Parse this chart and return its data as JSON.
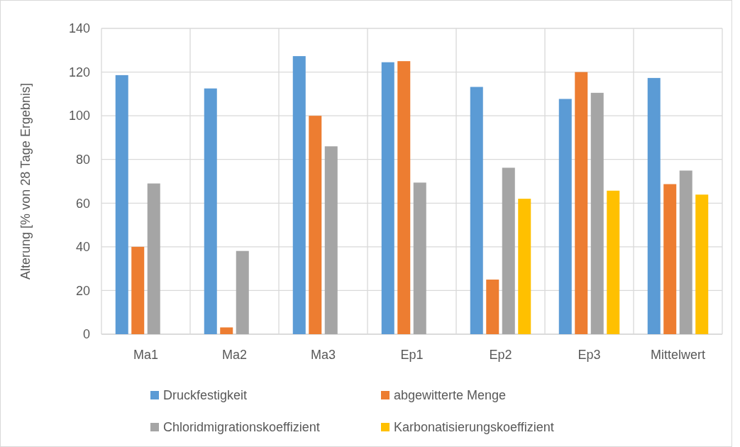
{
  "chart_data": {
    "type": "bar",
    "ylabel": "Alterung [% von 28 Tage Ergebnis]",
    "categories": [
      "Ma1",
      "Ma2",
      "Ma3",
      "Ep1",
      "Ep2",
      "Ep3",
      "Mittelwert"
    ],
    "series": [
      {
        "name": "Druckfestigkeit",
        "color": "#5b9bd5",
        "values": [
          118.6,
          112.5,
          127.3,
          124.5,
          113.2,
          107.7,
          117.3
        ]
      },
      {
        "name": "abgewitterte Menge",
        "color": "#ed7d31",
        "values": [
          40,
          3.1,
          100,
          125,
          25,
          120,
          68.7
        ]
      },
      {
        "name": "Chloridmigrationskoeffizient",
        "color": "#a5a5a5",
        "values": [
          69,
          38.1,
          86,
          69.4,
          76.2,
          110.5,
          74.9
        ]
      },
      {
        "name": "Karbonatisierungskoeffizient",
        "color": "#ffc000",
        "values": [
          null,
          null,
          null,
          null,
          62,
          65.7,
          63.9
        ]
      }
    ],
    "ylim": [
      0,
      140
    ],
    "yticks": [
      0,
      20,
      40,
      60,
      80,
      100,
      120,
      140
    ],
    "grid": true,
    "legend": "bottom"
  }
}
